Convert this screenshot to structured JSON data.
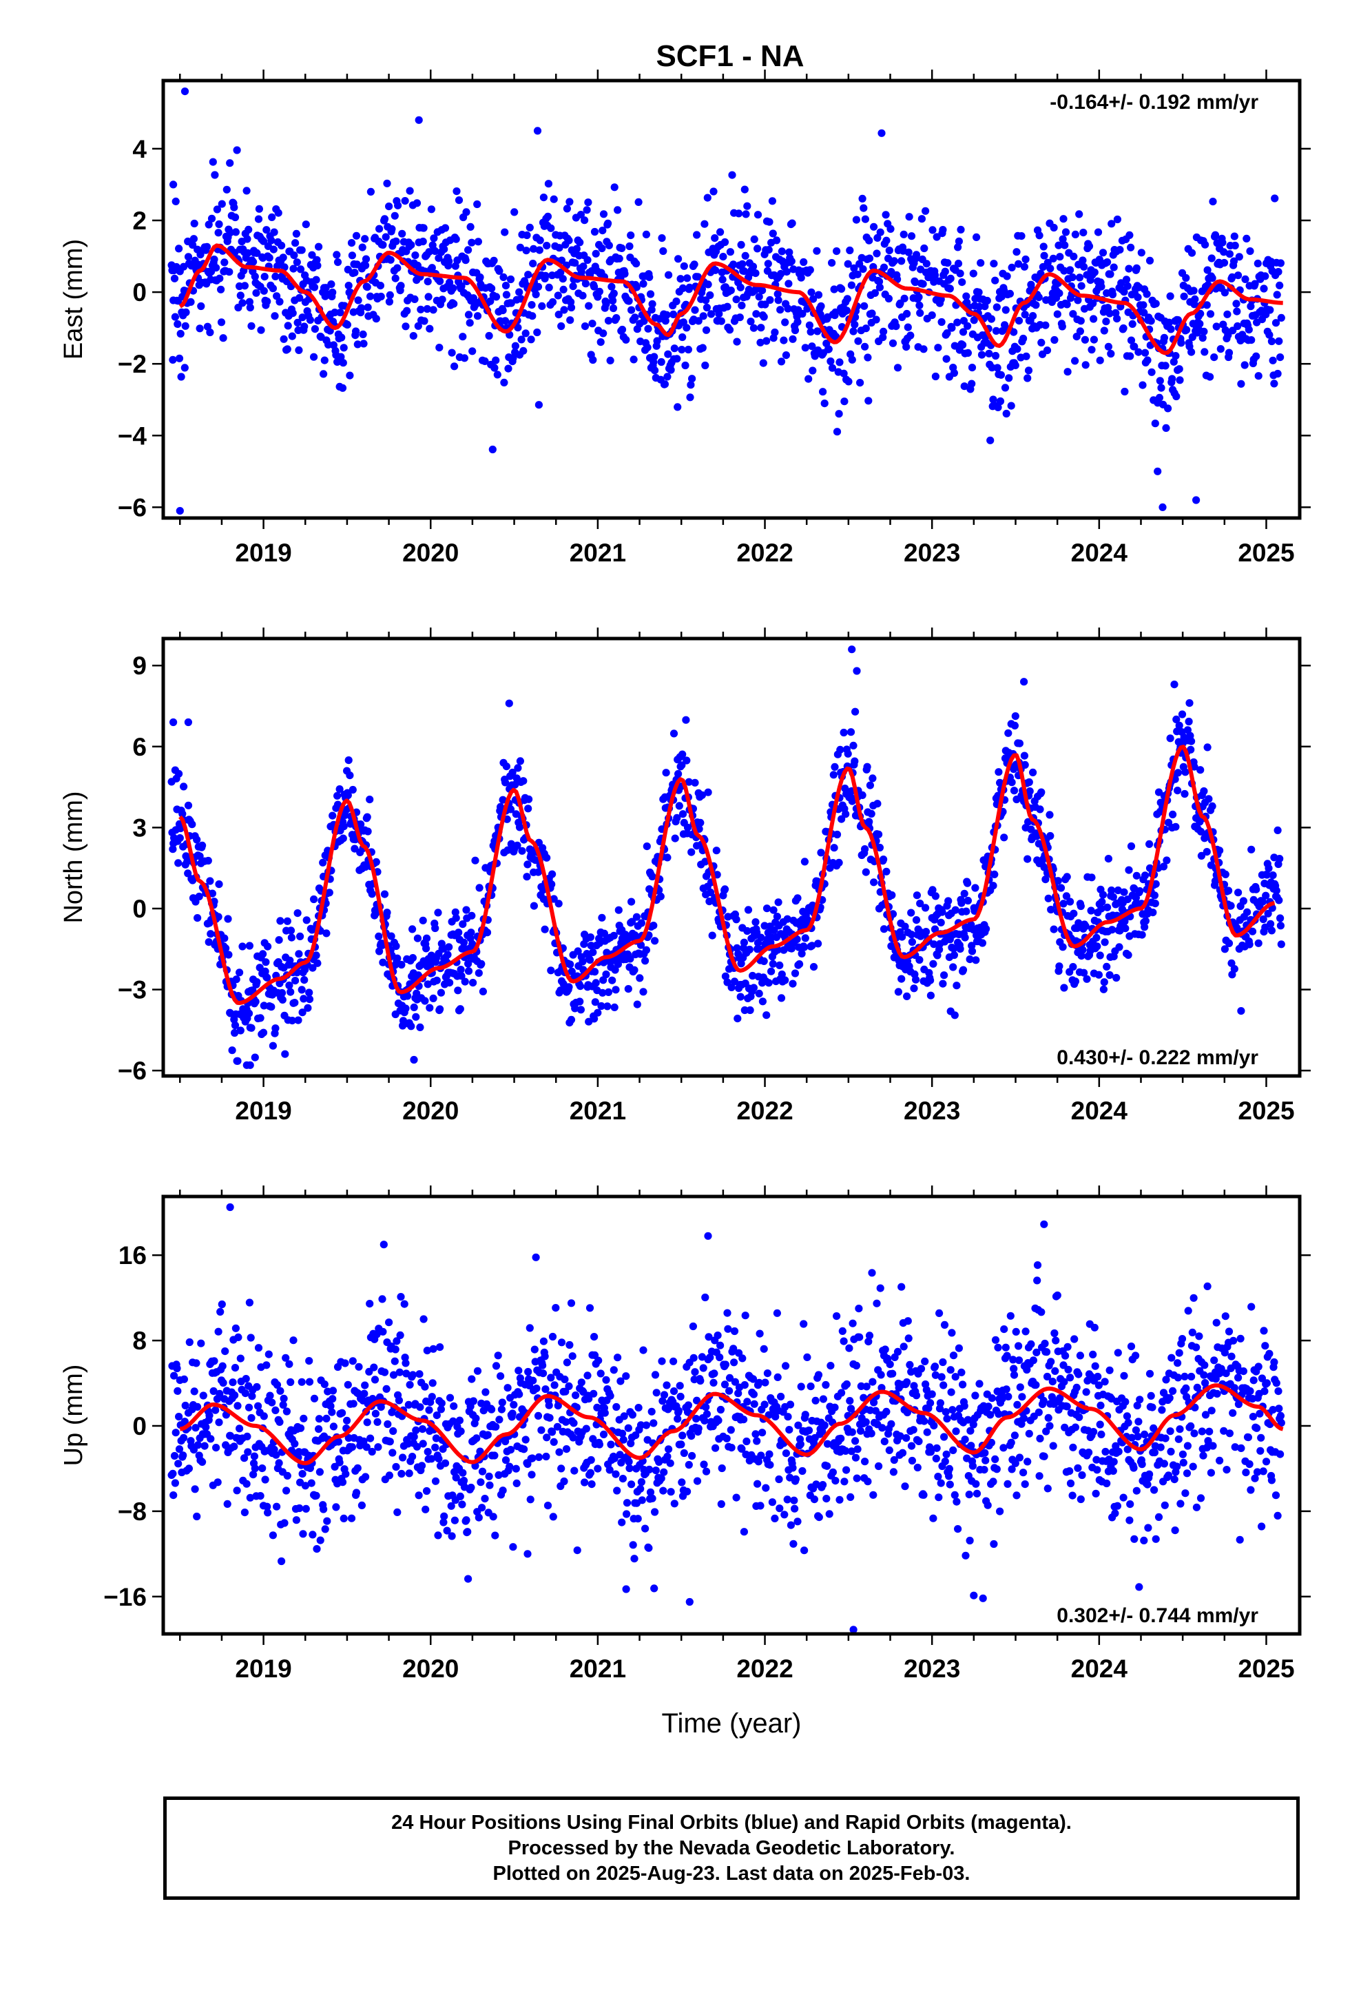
{
  "title": "SCF1 - NA",
  "footer": {
    "line1": "24 Hour Positions Using Final Orbits (blue) and Rapid Orbits (magenta).",
    "line2": "Processed by the Nevada Geodetic Laboratory.",
    "line3": "Plotted on 2025-Aug-23. Last data on 2025-Feb-03."
  },
  "colors": {
    "points": "#0000ff",
    "fit": "#ff0000",
    "frame": "#000000"
  },
  "chart_data": [
    {
      "type": "scatter",
      "ylabel": "East (mm)",
      "xlabel": "",
      "rate_label": "-0.164+/- 0.192 mm/yr",
      "rate_position": "top-right",
      "xlim": [
        2018.4,
        2025.2
      ],
      "ylim": [
        -6.3,
        5.9
      ],
      "xticks": [
        2019,
        2020,
        2021,
        2022,
        2023,
        2024,
        2025
      ],
      "yticks": [
        -6,
        -4,
        -2,
        0,
        2,
        4
      ],
      "fit": {
        "x": [
          2018.5,
          2018.62,
          2018.72,
          2018.9,
          2019.1,
          2019.25,
          2019.43,
          2019.6,
          2019.75,
          2019.95,
          2020.2,
          2020.45,
          2020.7,
          2020.9,
          2021.15,
          2021.35,
          2021.42,
          2021.5,
          2021.7,
          2021.95,
          2022.2,
          2022.42,
          2022.65,
          2022.85,
          2023.1,
          2023.25,
          2023.4,
          2023.55,
          2023.7,
          2023.9,
          2024.15,
          2024.4,
          2024.55,
          2024.72,
          2024.9,
          2025.1
        ],
        "y": [
          -0.4,
          0.6,
          1.3,
          0.7,
          0.6,
          0.0,
          -1.0,
          0.3,
          1.1,
          0.5,
          0.4,
          -1.1,
          0.9,
          0.4,
          0.3,
          -0.9,
          -1.2,
          -0.6,
          0.8,
          0.2,
          0.0,
          -1.4,
          0.6,
          0.1,
          -0.1,
          -0.6,
          -1.5,
          -0.3,
          0.5,
          -0.1,
          -0.3,
          -1.7,
          -0.6,
          0.3,
          -0.2,
          -0.3
        ]
      },
      "noise_sd": 1.05,
      "outliers": {
        "x": [
          2018.53,
          2018.46,
          2019.93,
          2020.64,
          2024.35,
          2024.38,
          2024.58,
          2018.5
        ],
        "y": [
          5.6,
          3.0,
          4.8,
          4.5,
          -5.0,
          -6.0,
          -5.8,
          -6.1
        ]
      }
    },
    {
      "type": "scatter",
      "ylabel": "North (mm)",
      "xlabel": "",
      "rate_label": "0.430+/- 0.222 mm/yr",
      "rate_position": "bottom-right",
      "xlim": [
        2018.4,
        2025.2
      ],
      "ylim": [
        -6.2,
        10.0
      ],
      "xticks": [
        2019,
        2020,
        2021,
        2022,
        2023,
        2024,
        2025
      ],
      "yticks": [
        -6,
        -3,
        0,
        3,
        6,
        9
      ],
      "fit": {
        "x": [
          2018.5,
          2018.62,
          2018.85,
          2019.1,
          2019.25,
          2019.5,
          2019.6,
          2019.82,
          2020.05,
          2020.25,
          2020.5,
          2020.6,
          2020.85,
          2021.05,
          2021.25,
          2021.5,
          2021.6,
          2021.85,
          2022.05,
          2022.25,
          2022.5,
          2022.6,
          2022.83,
          2023.05,
          2023.25,
          2023.5,
          2023.6,
          2023.85,
          2024.05,
          2024.25,
          2024.5,
          2024.62,
          2024.82,
          2025.05
        ],
        "y": [
          3.4,
          1.0,
          -3.5,
          -2.6,
          -2.0,
          4.0,
          2.3,
          -3.1,
          -2.2,
          -1.6,
          4.4,
          2.5,
          -2.7,
          -1.8,
          -1.2,
          4.8,
          2.7,
          -2.3,
          -1.4,
          -0.8,
          5.2,
          3.0,
          -1.8,
          -0.9,
          -0.4,
          5.7,
          3.3,
          -1.4,
          -0.5,
          0.0,
          6.0,
          3.4,
          -1.0,
          0.2
        ]
      },
      "noise_sd": 0.95,
      "outliers": {
        "x": [
          2018.46,
          2018.55,
          2018.9,
          2019.9,
          2020.47,
          2022.52,
          2022.55,
          2023.55,
          2024.45,
          2018.92
        ],
        "y": [
          6.9,
          6.9,
          -5.8,
          -5.6,
          7.6,
          9.6,
          8.8,
          8.4,
          8.3,
          -5.8
        ]
      }
    },
    {
      "type": "scatter",
      "ylabel": "Up (mm)",
      "xlabel": "Time (year)",
      "rate_label": "0.302+/- 0.744 mm/yr",
      "rate_position": "bottom-right",
      "xlim": [
        2018.4,
        2025.2
      ],
      "ylim": [
        -19.5,
        21.5
      ],
      "xticks": [
        2019,
        2020,
        2021,
        2022,
        2023,
        2024,
        2025
      ],
      "yticks": [
        -16,
        -8,
        0,
        8,
        16
      ],
      "fit": {
        "x": [
          2018.5,
          2018.7,
          2018.95,
          2019.25,
          2019.45,
          2019.7,
          2019.95,
          2020.25,
          2020.45,
          2020.7,
          2020.95,
          2021.25,
          2021.45,
          2021.7,
          2021.95,
          2022.25,
          2022.45,
          2022.7,
          2022.95,
          2023.25,
          2023.45,
          2023.7,
          2023.95,
          2024.25,
          2024.45,
          2024.7,
          2024.95,
          2025.1
        ],
        "y": [
          -0.3,
          2.0,
          0.0,
          -3.5,
          -1.0,
          2.3,
          0.5,
          -3.4,
          -0.8,
          2.8,
          0.8,
          -3.0,
          -0.5,
          3.0,
          1.0,
          -2.7,
          0.2,
          3.2,
          1.2,
          -2.5,
          0.8,
          3.5,
          1.6,
          -2.2,
          1.0,
          3.8,
          1.8,
          -0.3
        ]
      },
      "noise_sd": 4.3,
      "outliers": {
        "x": [
          2018.8,
          2019.72,
          2020.63,
          2021.66,
          2023.67,
          2022.53,
          2020.58,
          2021.55,
          2021.17,
          2023.25
        ],
        "y": [
          20.5,
          17.0,
          15.8,
          17.8,
          18.9,
          -19.1,
          -12.0,
          -16.5,
          -15.3,
          -15.9
        ]
      }
    }
  ]
}
